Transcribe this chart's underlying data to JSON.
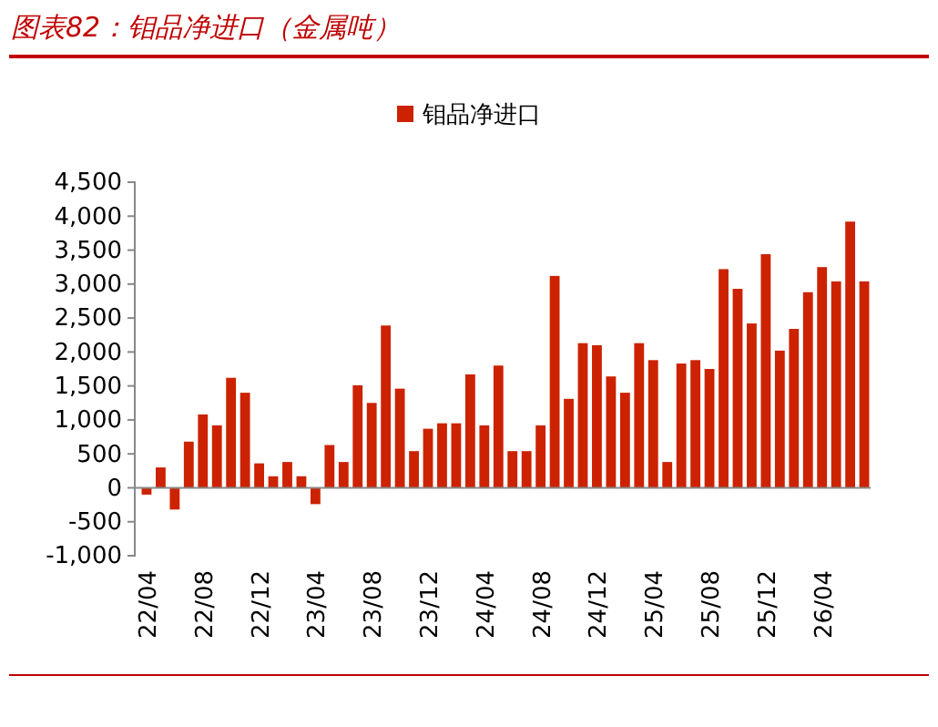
{
  "chart_data": {
    "type": "bar",
    "title": "图表82：钼品净进口（金属吨）",
    "categories": [
      "22/04",
      null,
      null,
      null,
      "22/08",
      null,
      null,
      null,
      "22/12",
      null,
      null,
      null,
      "23/04",
      null,
      null,
      null,
      "23/08",
      null,
      null,
      null,
      "23/12",
      null,
      null,
      null,
      "24/04",
      null,
      null,
      null,
      "24/08",
      null,
      null,
      null,
      "24/12",
      null,
      null,
      null,
      "25/04",
      null,
      null,
      null,
      "25/08",
      null,
      null,
      null,
      "25/12",
      null,
      null,
      null,
      "26/04",
      null,
      null,
      null
    ],
    "series": [
      {
        "name": "钼品净进口",
        "color": "#cc2200",
        "values": [
          -100,
          300,
          -320,
          680,
          1080,
          920,
          1620,
          1400,
          360,
          170,
          380,
          170,
          -240,
          630,
          380,
          1510,
          1250,
          2390,
          1460,
          540,
          870,
          950,
          950,
          1670,
          920,
          1800,
          540,
          540,
          920,
          3120,
          1310,
          2130,
          2100,
          1640,
          1400,
          2130,
          1880,
          380,
          1830,
          1880,
          1750,
          3220,
          2930,
          2420,
          3440,
          2020,
          2340,
          2880,
          3250,
          3040,
          3920,
          3040
        ]
      }
    ],
    "ylim": [
      -1000,
      4500
    ],
    "yticks": [
      {
        "value": -1000,
        "label": "-1,000"
      },
      -500,
      0,
      500,
      {
        "value": 1000,
        "label": "1,000"
      },
      {
        "value": 1500,
        "label": "1,500"
      },
      {
        "value": 2000,
        "label": "2,000"
      },
      {
        "value": 2500,
        "label": "2,500"
      },
      {
        "value": 3000,
        "label": "3,000"
      },
      {
        "value": 3500,
        "label": "3,500"
      },
      {
        "value": 4000,
        "label": "4,000"
      },
      {
        "value": 4500,
        "label": "4,500"
      }
    ],
    "legend": "top"
  }
}
